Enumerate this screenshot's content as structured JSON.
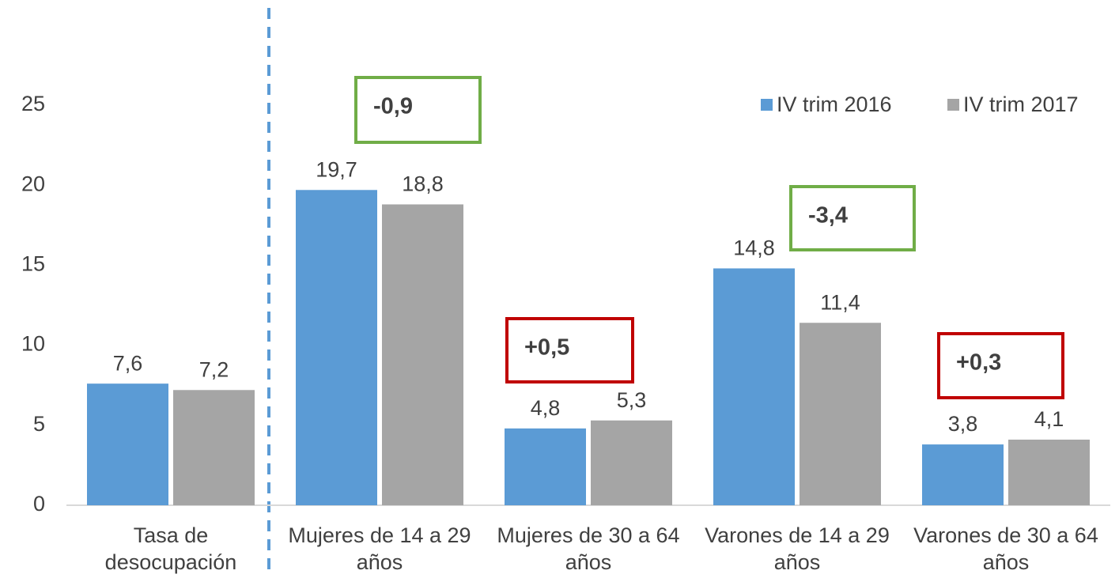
{
  "chart_data": {
    "type": "bar",
    "categories": [
      "Tasa de desocupación",
      "Mujeres de 14 a 29 años",
      "Mujeres de 30 a 64 años",
      "Varones de 14 a 29 años",
      "Varones de 30 a 64 años"
    ],
    "series": [
      {
        "name": "IV trim 2016",
        "color": "#5b9bd5",
        "values": [
          7.6,
          19.7,
          4.8,
          14.8,
          3.8
        ],
        "value_labels": [
          "7,6",
          "19,7",
          "4,8",
          "14,8",
          "3,8"
        ]
      },
      {
        "name": "IV trim 2017",
        "color": "#a5a5a5",
        "values": [
          7.2,
          18.8,
          5.3,
          11.4,
          4.1
        ],
        "value_labels": [
          "7,2",
          "18,8",
          "5,3",
          "11,4",
          "4,1"
        ]
      }
    ],
    "ylim": [
      0,
      25
    ],
    "yticks": [
      0,
      5,
      10,
      15,
      20,
      25
    ],
    "grid": false,
    "legend": "top-right",
    "annotations": [
      {
        "text": "-0,9",
        "color": "#70ad47"
      },
      {
        "text": "-3,4",
        "color": "#70ad47"
      },
      {
        "text": "+0,5",
        "color": "#c00000"
      },
      {
        "text": "+0,3",
        "color": "#c00000"
      }
    ]
  }
}
